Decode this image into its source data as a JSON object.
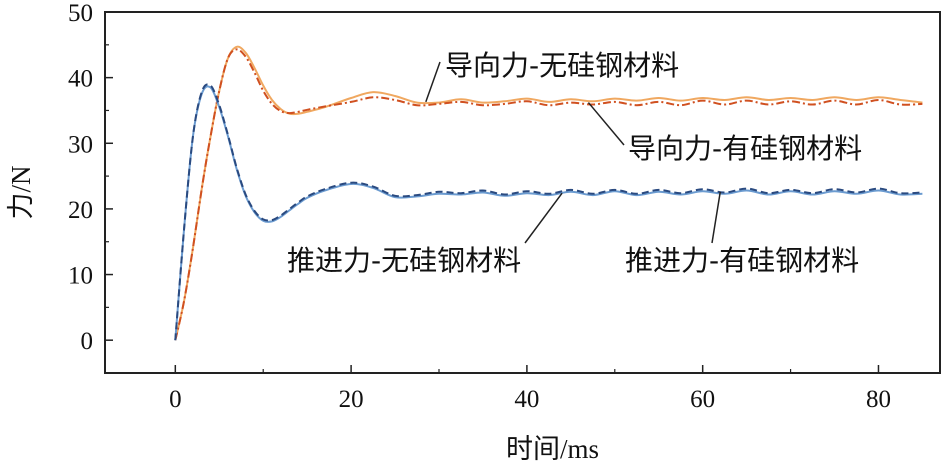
{
  "chart_data": {
    "type": "line",
    "xlabel": "时间/ms",
    "ylabel": "力/N",
    "xlim": [
      -8,
      87
    ],
    "ylim": [
      -5,
      50
    ],
    "xticks": [
      0,
      20,
      40,
      60,
      80
    ],
    "yticks": [
      0,
      10,
      20,
      30,
      40,
      50
    ],
    "grid": false,
    "series": [
      {
        "name": "导向力-无硅钢材料",
        "color": "#f0a860",
        "style": "solid",
        "x": [
          0,
          1,
          2,
          3,
          4,
          5,
          6,
          7,
          8,
          9,
          10,
          11,
          12,
          13,
          14,
          15,
          17,
          20,
          22.5,
          25,
          27.5,
          30,
          32.5,
          35,
          37.5,
          40,
          42.5,
          45,
          47.5,
          50,
          52.5,
          55,
          57.5,
          60,
          62.5,
          65,
          67.5,
          70,
          72.5,
          75,
          77.5,
          80,
          82.5,
          85
        ],
        "values": [
          0,
          6,
          14,
          23,
          31,
          38,
          43,
          44.7,
          43.8,
          41.5,
          38.8,
          36.6,
          35.2,
          34.5,
          34.5,
          34.8,
          35.5,
          36.9,
          37.8,
          37.2,
          36.2,
          36.2,
          36.7,
          36.2,
          36.4,
          36.8,
          36.3,
          36.7,
          36.4,
          36.8,
          36.5,
          36.9,
          36.5,
          36.9,
          36.6,
          37.0,
          36.6,
          36.9,
          36.6,
          37.0,
          36.6,
          37.0,
          36.6,
          36.2
        ]
      },
      {
        "name": "导向力-有硅钢材料",
        "color": "#d05020",
        "style": "dashdot",
        "x": [
          0,
          1,
          2,
          3,
          4,
          5,
          6,
          7,
          8,
          9,
          10,
          11,
          12,
          13,
          14,
          15,
          17,
          20,
          22.5,
          25,
          27.5,
          30,
          32.5,
          35,
          37.5,
          40,
          42.5,
          45,
          47.5,
          50,
          52.5,
          55,
          57.5,
          60,
          62.5,
          65,
          67.5,
          70,
          72.5,
          75,
          77.5,
          80,
          82.5,
          85
        ],
        "values": [
          0,
          6,
          14,
          23,
          31,
          38,
          43,
          44.3,
          43.2,
          40.8,
          38.0,
          36.0,
          34.9,
          34.6,
          34.8,
          35.1,
          35.6,
          36.3,
          37.0,
          36.6,
          35.8,
          36.0,
          36.3,
          35.8,
          36.0,
          36.4,
          35.8,
          36.2,
          35.9,
          36.3,
          35.8,
          36.3,
          35.8,
          36.5,
          35.9,
          36.5,
          35.9,
          36.4,
          35.9,
          36.5,
          35.9,
          36.6,
          35.9,
          36.0
        ]
      },
      {
        "name": "推进力-无硅钢材料",
        "color": "#6b9bd0",
        "style": "solid",
        "x": [
          0,
          1,
          2,
          3,
          4,
          5,
          6,
          7,
          8,
          9,
          10,
          11,
          12,
          13,
          14,
          15,
          17,
          20,
          22.5,
          25,
          27.5,
          30,
          32.5,
          35,
          37.5,
          40,
          42.5,
          45,
          47.5,
          50,
          52.5,
          55,
          57.5,
          60,
          62.5,
          65,
          67.5,
          70,
          72.5,
          75,
          77.5,
          80,
          82.5,
          85
        ],
        "values": [
          0,
          17,
          31,
          37.5,
          38.5,
          35.5,
          31,
          26,
          22,
          19.5,
          18.2,
          18.1,
          18.8,
          19.8,
          20.8,
          21.7,
          22.8,
          23.8,
          23.2,
          21.8,
          21.9,
          22.3,
          22.2,
          22.5,
          22.0,
          22.4,
          22.1,
          22.6,
          22.1,
          22.7,
          22.1,
          22.6,
          22.2,
          22.7,
          22.3,
          22.8,
          22.2,
          22.7,
          22.2,
          22.7,
          22.3,
          22.8,
          22.2,
          22.3
        ]
      },
      {
        "name": "推进力-有硅钢材料",
        "color": "#2a4a80",
        "style": "dashed",
        "x": [
          0,
          1,
          2,
          3,
          4,
          5,
          6,
          7,
          8,
          9,
          10,
          11,
          12,
          13,
          14,
          15,
          17,
          20,
          22.5,
          25,
          27.5,
          30,
          32.5,
          35,
          37.5,
          40,
          42.5,
          45,
          47.5,
          50,
          52.5,
          55,
          57.5,
          60,
          62.5,
          65,
          67.5,
          70,
          72.5,
          75,
          77.5,
          80,
          82.5,
          85
        ],
        "values": [
          0,
          17,
          31,
          37.8,
          38.8,
          35.8,
          31.2,
          26.2,
          22.2,
          19.7,
          18.4,
          18.3,
          19.0,
          20.0,
          21.0,
          21.9,
          23.0,
          24.0,
          23.4,
          22.0,
          22.1,
          22.6,
          22.4,
          22.8,
          22.2,
          22.7,
          22.3,
          22.9,
          22.3,
          22.9,
          22.3,
          22.9,
          22.4,
          23.0,
          22.5,
          23.1,
          22.4,
          22.9,
          22.4,
          23.0,
          22.5,
          23.1,
          22.4,
          22.5
        ]
      }
    ],
    "annotations": [
      {
        "text": "导向力-无硅钢材料",
        "points_to_series": 0
      },
      {
        "text": "导向力-有硅钢材料",
        "points_to_series": 1
      },
      {
        "text": "推进力-无硅钢材料",
        "points_to_series": 2
      },
      {
        "text": "推进力-有硅钢材料",
        "points_to_series": 3
      }
    ]
  }
}
